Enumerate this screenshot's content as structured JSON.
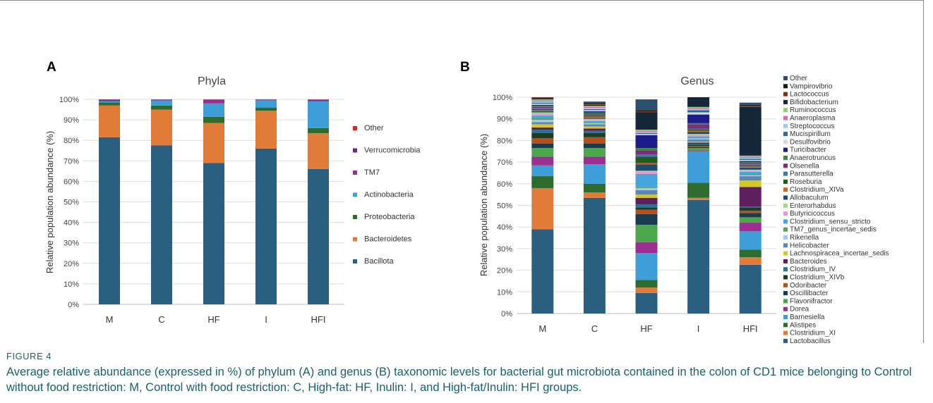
{
  "figure": {
    "caption_label": "FIGURE 4",
    "caption_text": "Average relative abundance (expressed in %) of phylum (A) and genus (B) taxonomic levels for bacterial gut microbiota contained in the colon of CD1 mice belonging to Control without food restriction: M, Control with food restriction: C, High-fat: HF, Inulin: I, and High-fat/Inulin: HFI groups."
  },
  "chart_data": [
    {
      "type": "bar",
      "stacked": true,
      "panel_label": "A",
      "title": "Phyla",
      "xlabel": "",
      "ylabel": "Relative population abundance (%)",
      "ylim": [
        0,
        100
      ],
      "yticks": [
        "0%",
        "10%",
        "20%",
        "30%",
        "40%",
        "50%",
        "60%",
        "70%",
        "80%",
        "90%",
        "100%"
      ],
      "grid": true,
      "legend_placement": "right",
      "categories": [
        "M",
        "C",
        "HF",
        "I",
        "HFI"
      ],
      "series": [
        {
          "name": "Bacillota",
          "color": "#2b5f80",
          "values": [
            81.5,
            77.5,
            69,
            76,
            66
          ]
        },
        {
          "name": "Bacteroidetes",
          "color": "#e07b39",
          "values": [
            15.5,
            17.5,
            19.5,
            18.5,
            17.5
          ]
        },
        {
          "name": "Proteobacteria",
          "color": "#2e6b2e",
          "values": [
            1.5,
            2,
            3,
            1.5,
            2.5
          ]
        },
        {
          "name": "Actinobacteria",
          "color": "#3d9ed8",
          "values": [
            0.5,
            2.5,
            6.5,
            3.5,
            13
          ]
        },
        {
          "name": "TM7",
          "color": "#9b2f8f",
          "values": [
            0.5,
            0.2,
            1.8,
            0.1,
            0.7
          ]
        },
        {
          "name": "Verrucomicrobia",
          "color": "#6b2a8a",
          "values": [
            0.3,
            0.1,
            0.1,
            0.1,
            0.2
          ]
        },
        {
          "name": "Other",
          "color": "#e02020",
          "values": [
            0.2,
            0.2,
            0.1,
            0.3,
            0.1
          ]
        }
      ]
    },
    {
      "type": "bar",
      "stacked": true,
      "panel_label": "B",
      "title": "Genus",
      "xlabel": "",
      "ylabel": "Relative population abundance (%)",
      "ylim": [
        0,
        100
      ],
      "yticks": [
        "0%",
        "10%",
        "20%",
        "30%",
        "40%",
        "50%",
        "60%",
        "70%",
        "80%",
        "90%",
        "100%"
      ],
      "grid": true,
      "legend_placement": "right",
      "categories": [
        "M",
        "C",
        "HF",
        "I",
        "HFI"
      ],
      "series": [
        {
          "name": "Lactobacillus",
          "color": "#2b5f80",
          "values": [
            39,
            53.5,
            9.5,
            52.5,
            22.5
          ]
        },
        {
          "name": "Clostridium_XI",
          "color": "#e07b39",
          "values": [
            19,
            2.5,
            2.5,
            1,
            3.5
          ]
        },
        {
          "name": "Alistipes",
          "color": "#2e6b2e",
          "values": [
            5.5,
            4,
            3.5,
            7,
            3.5
          ]
        },
        {
          "name": "Barnesiella",
          "color": "#3d9ed8",
          "values": [
            5,
            9,
            12.5,
            14.5,
            8.5
          ]
        },
        {
          "name": "Dorea",
          "color": "#9b2f8f",
          "values": [
            4,
            3.5,
            5,
            0.5,
            4
          ]
        },
        {
          "name": "Flavonifractor",
          "color": "#4aa84a",
          "values": [
            4,
            4,
            8,
            1,
            2.5
          ]
        },
        {
          "name": "Oscillibacter",
          "color": "#1a3a50",
          "values": [
            2,
            2,
            5,
            0.5,
            2
          ]
        },
        {
          "name": "Odoribacter",
          "color": "#b5501e",
          "values": [
            2.5,
            3,
            2,
            0.5,
            1
          ]
        },
        {
          "name": "Clostridium_XIVb",
          "color": "#1e3d1e",
          "values": [
            2.5,
            2,
            1,
            0.5,
            1.5
          ]
        },
        {
          "name": "Clostridium_IV",
          "color": "#2f6f9a",
          "values": [
            1.5,
            1,
            1.5,
            0.5,
            0.5
          ]
        },
        {
          "name": "Bacteroides",
          "color": "#5e1f5e",
          "values": [
            1,
            1,
            3,
            0.5,
            9
          ]
        },
        {
          "name": "Lachnospiracea_incertae_sedis",
          "color": "#d4c82e",
          "values": [
            1.5,
            1,
            1.5,
            0.5,
            3
          ]
        },
        {
          "name": "Helicobacter",
          "color": "#5b86b8",
          "values": [
            1,
            1,
            2,
            1,
            2
          ]
        },
        {
          "name": "Rikenella",
          "color": "#a7c8e8",
          "values": [
            1,
            0.5,
            1,
            0.5,
            0.5
          ]
        },
        {
          "name": "TM7_genus_incertae_sedis",
          "color": "#5aa05a",
          "values": [
            1,
            0.5,
            0.5,
            0.5,
            0.5
          ]
        },
        {
          "name": "Clostridium_sensu_stricto",
          "color": "#46a5dc",
          "values": [
            1,
            0.5,
            6,
            0.5,
            1
          ]
        },
        {
          "name": "Butyricicoccus",
          "color": "#e39bd3",
          "values": [
            1,
            0.5,
            1,
            0.5,
            0.5
          ]
        },
        {
          "name": "Enterorhabdus",
          "color": "#a6d785",
          "values": [
            0.5,
            0.5,
            0.5,
            0.5,
            0.5
          ]
        },
        {
          "name": "Allobaculum",
          "color": "#1f4d70",
          "values": [
            0.5,
            0.5,
            3,
            1,
            1
          ]
        },
        {
          "name": "Clostridium_XIVa",
          "color": "#d0652a",
          "values": [
            0.5,
            0.5,
            0.5,
            0.5,
            0.5
          ]
        },
        {
          "name": "Roseburia",
          "color": "#1f5a1f",
          "values": [
            0.5,
            0.5,
            3,
            0.5,
            0.5
          ]
        },
        {
          "name": "Parasutterella",
          "color": "#3a78b5",
          "values": [
            0.5,
            0.5,
            1,
            0.5,
            0.5
          ]
        },
        {
          "name": "Olsenella",
          "color": "#7a2d7a",
          "values": [
            0.5,
            0.5,
            2,
            2,
            0.5
          ]
        },
        {
          "name": "Anaerotruncus",
          "color": "#3c8a3c",
          "values": [
            0.5,
            0.5,
            1,
            0.5,
            0.5
          ]
        },
        {
          "name": "Turicibacter",
          "color": "#1c1c8a",
          "values": [
            0.5,
            0.5,
            6,
            4,
            0.5
          ]
        },
        {
          "name": "Desulfovibrio",
          "color": "#d9d9d9",
          "values": [
            0.5,
            0.5,
            0.5,
            1,
            0.5
          ]
        },
        {
          "name": "Mucispirillum",
          "color": "#2a6f8f",
          "values": [
            0.5,
            0.5,
            0.5,
            1,
            0.5
          ]
        },
        {
          "name": "Streptococcus",
          "color": "#9ecde8",
          "values": [
            0.5,
            0.5,
            0.5,
            0.5,
            0.5
          ]
        },
        {
          "name": "Anaeroplasma",
          "color": "#d86ab8",
          "values": [
            0.5,
            0.5,
            0.5,
            0.5,
            0.5
          ]
        },
        {
          "name": "Ruminococcus",
          "color": "#8fcf6f",
          "values": [
            0.5,
            0.5,
            0.5,
            0.5,
            0.5
          ]
        },
        {
          "name": "Bifidobacterium",
          "color": "#14283a",
          "values": [
            0.5,
            0.5,
            8,
            5,
            22.5
          ]
        },
        {
          "name": "Lactococcus",
          "color": "#7a3518",
          "values": [
            0.5,
            0.5,
            0.5,
            0.5,
            0.5
          ]
        },
        {
          "name": "Vampirovibrio",
          "color": "#1a1a1a",
          "values": [
            0.5,
            0.5,
            0.5,
            0.5,
            0.5
          ]
        },
        {
          "name": "Other",
          "color": "#2b4f6e",
          "values": [
            0,
            0.5,
            5,
            0,
            1
          ]
        }
      ]
    }
  ]
}
